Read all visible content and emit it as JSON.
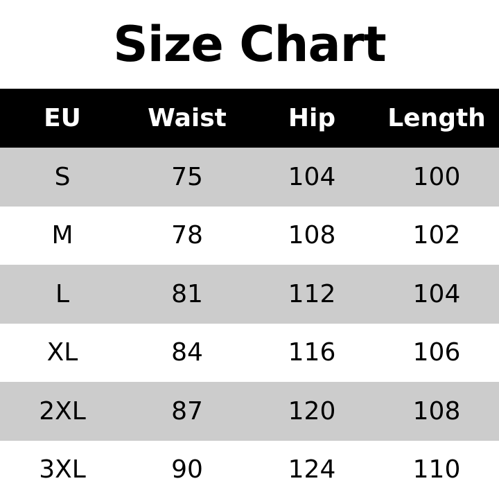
{
  "title": "Size Chart",
  "columns": [
    "EU",
    "Waist",
    "Hip",
    "Length"
  ],
  "rows": [
    [
      "S",
      "75",
      "104",
      "100"
    ],
    [
      "M",
      "78",
      "108",
      "102"
    ],
    [
      "L",
      "81",
      "112",
      "104"
    ],
    [
      "XL",
      "84",
      "116",
      "106"
    ],
    [
      "2XL",
      "87",
      "120",
      "108"
    ],
    [
      "3XL",
      "90",
      "124",
      "110"
    ]
  ],
  "colors": {
    "header_bg": "#000000",
    "stripe": "#cccccc"
  }
}
